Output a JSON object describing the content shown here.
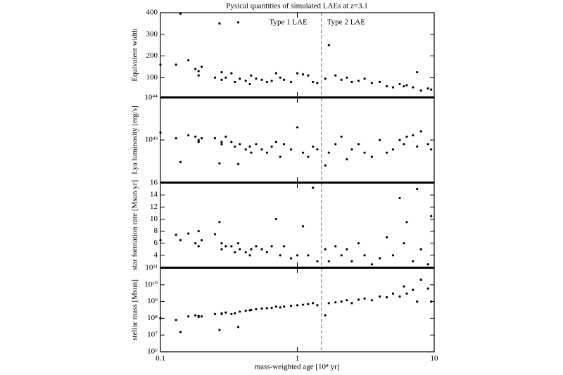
{
  "chart_data": [
    {
      "type": "scatter",
      "title": "Pysical quantities of simulated LAEs at z=3.1",
      "ylabel": "Equivalent width",
      "annotations": [
        "Type 1 LAE",
        "Type 2 LAE"
      ],
      "vline": 1.5,
      "xscale": "log",
      "yscale": "linear",
      "color": "#000000",
      "xlim": [
        0.1,
        10
      ],
      "xticks": [
        0.1,
        1,
        10
      ],
      "ylim": [
        10,
        400
      ],
      "yticks": [
        100,
        200,
        300,
        400
      ],
      "x": [
        0.1,
        0.13,
        0.14,
        0.16,
        0.18,
        0.19,
        0.19,
        0.2,
        0.25,
        0.27,
        0.28,
        0.28,
        0.3,
        0.33,
        0.35,
        0.37,
        0.38,
        0.42,
        0.45,
        0.46,
        0.5,
        0.55,
        0.6,
        0.65,
        0.7,
        0.75,
        0.8,
        0.9,
        1.0,
        1.1,
        1.2,
        1.3,
        1.4,
        1.6,
        1.7,
        1.9,
        2.1,
        2.3,
        2.5,
        2.8,
        3.1,
        3.5,
        4.0,
        4.5,
        5.0,
        5.6,
        6.0,
        6.3,
        7.0,
        7.5,
        8.0,
        9.0,
        9.5
      ],
      "values": [
        160,
        160,
        395,
        180,
        140,
        130,
        110,
        150,
        100,
        350,
        125,
        90,
        100,
        120,
        80,
        355,
        95,
        85,
        70,
        110,
        95,
        90,
        80,
        85,
        120,
        100,
        90,
        80,
        120,
        115,
        110,
        80,
        75,
        95,
        250,
        110,
        90,
        100,
        80,
        85,
        95,
        75,
        80,
        60,
        55,
        70,
        60,
        65,
        55,
        125,
        40,
        50,
        45
      ]
    },
    {
      "type": "scatter",
      "ylabel": "Lya luminosity [erg/s]",
      "vline": 1.5,
      "xscale": "log",
      "yscale": "log",
      "color": "#000000",
      "xlim": [
        0.1,
        10
      ],
      "xticks": [
        0.1,
        1,
        10
      ],
      "ylim": [
        1e+42,
        1e+44
      ],
      "yticks": [
        {
          "value": 1e+43,
          "label": "10⁴³"
        },
        {
          "value": 1e+44,
          "label": "10⁴⁴"
        }
      ],
      "x": [
        0.1,
        0.13,
        0.14,
        0.16,
        0.18,
        0.19,
        0.19,
        0.2,
        0.25,
        0.27,
        0.28,
        0.28,
        0.3,
        0.33,
        0.35,
        0.37,
        0.38,
        0.42,
        0.45,
        0.46,
        0.5,
        0.55,
        0.6,
        0.65,
        0.7,
        0.75,
        0.8,
        0.9,
        1.0,
        1.1,
        1.2,
        1.3,
        1.4,
        1.6,
        1.7,
        1.9,
        2.1,
        2.3,
        2.5,
        2.8,
        3.1,
        3.5,
        4.0,
        4.5,
        5.0,
        5.6,
        6.0,
        6.3,
        7.0,
        7.5,
        8.0,
        9.0,
        9.5
      ],
      "values": [
        1.5e+43,
        1.1e+43,
        3e+42,
        1.3e+43,
        1.2e+43,
        1e+43,
        9e+42,
        1.1e+43,
        1.1e+43,
        2.8e+42,
        9e+42,
        8e+42,
        1.2e+43,
        9e+42,
        7e+42,
        2.7e+42,
        8e+42,
        6e+42,
        7e+42,
        5e+42,
        8e+42,
        6e+42,
        5e+42,
        7e+42,
        9e+42,
        4e+42,
        8e+42,
        6e+42,
        2e+43,
        5e+42,
        4e+42,
        7e+42,
        6e+42,
        2.5e+42,
        5e+42,
        8e+42,
        1.2e+43,
        3.5e+42,
        6e+42,
        8e+42,
        5e+42,
        4e+42,
        1e+43,
        5e+42,
        6e+42,
        1e+43,
        8e+42,
        1.2e+43,
        1.3e+43,
        7e+42,
        1.6e+43,
        8e+42,
        6e+42
      ]
    },
    {
      "type": "scatter",
      "ylabel": "star formation rate [Msun yr]",
      "vline": 1.5,
      "xscale": "log",
      "yscale": "linear",
      "color": "#000000",
      "xlim": [
        0.1,
        10
      ],
      "xticks": [
        0.1,
        1,
        10
      ],
      "ylim": [
        2,
        16
      ],
      "yticks": [
        4,
        6,
        8,
        10,
        12,
        14,
        16
      ],
      "x": [
        0.1,
        0.13,
        0.14,
        0.16,
        0.18,
        0.19,
        0.19,
        0.2,
        0.25,
        0.27,
        0.28,
        0.28,
        0.3,
        0.33,
        0.35,
        0.37,
        0.38,
        0.42,
        0.45,
        0.46,
        0.5,
        0.55,
        0.6,
        0.65,
        0.7,
        0.75,
        0.8,
        0.9,
        1.0,
        1.1,
        1.2,
        1.3,
        1.4,
        1.6,
        1.7,
        1.9,
        2.1,
        2.3,
        2.5,
        2.8,
        3.1,
        3.5,
        4.0,
        4.5,
        5.0,
        5.6,
        6.0,
        6.3,
        7.0,
        7.5,
        8.0,
        9.0,
        9.5
      ],
      "values": [
        6.5,
        7.4,
        6.5,
        7.6,
        6,
        8,
        5.5,
        6.5,
        7.5,
        9.5,
        6,
        5,
        5.5,
        5.5,
        4.5,
        6,
        5,
        4.5,
        4,
        5,
        5.5,
        5,
        4.5,
        5.5,
        10,
        4,
        5.5,
        3.5,
        4,
        8.8,
        4,
        15.2,
        3,
        5,
        3,
        5.5,
        4,
        5,
        3,
        6,
        4,
        2.5,
        3.5,
        7,
        4,
        13.5,
        6,
        9.5,
        3,
        15,
        5,
        2.5,
        10.5
      ]
    },
    {
      "type": "scatter",
      "ylabel": "stellar mass [Msun]",
      "xlabel": "mass-weighted age [10⁸ yr]",
      "vline": 1.5,
      "xscale": "log",
      "yscale": "log",
      "color": "#000000",
      "xlim": [
        0.1,
        10
      ],
      "xticks": [
        0.1,
        1,
        10
      ],
      "ylim": [
        1000000.0,
        100000000000.0
      ],
      "yticks": [
        {
          "value": 1000000.0,
          "label": "10⁶"
        },
        {
          "value": 10000000.0,
          "label": "10⁷"
        },
        {
          "value": 100000000.0,
          "label": "10⁸"
        },
        {
          "value": 1000000000.0,
          "label": "10⁹"
        },
        {
          "value": 10000000000.0,
          "label": "10¹⁰"
        },
        {
          "value": 100000000000.0,
          "label": "10¹¹"
        }
      ],
      "x": [
        0.1,
        0.13,
        0.14,
        0.16,
        0.18,
        0.19,
        0.19,
        0.2,
        0.25,
        0.27,
        0.28,
        0.28,
        0.3,
        0.33,
        0.35,
        0.37,
        0.38,
        0.42,
        0.45,
        0.46,
        0.5,
        0.55,
        0.6,
        0.65,
        0.7,
        0.75,
        0.8,
        0.9,
        1.0,
        1.1,
        1.2,
        1.3,
        1.4,
        1.6,
        1.7,
        1.9,
        2.1,
        2.3,
        2.5,
        2.8,
        3.1,
        3.5,
        4.0,
        4.5,
        5.0,
        5.6,
        6.0,
        6.3,
        7.0,
        7.5,
        8.0,
        9.0,
        9.5
      ],
      "values": [
        100000000.0,
        80000000.0,
        15000000.0,
        130000000.0,
        150000000.0,
        140000000.0,
        120000000.0,
        130000000.0,
        180000000.0,
        20000000.0,
        180000000.0,
        200000000.0,
        220000000.0,
        180000000.0,
        200000000.0,
        30000000.0,
        250000000.0,
        280000000.0,
        300000000.0,
        320000000.0,
        350000000.0,
        380000000.0,
        400000000.0,
        420000000.0,
        500000000.0,
        450000000.0,
        500000000.0,
        550000000.0,
        600000000.0,
        650000000.0,
        700000000.0,
        800000000.0,
        600000000.0,
        150000000.0,
        800000000.0,
        900000000.0,
        1000000000.0,
        1200000000.0,
        800000000.0,
        1300000000.0,
        1500000000.0,
        1200000000.0,
        2000000000.0,
        1800000000.0,
        3000000000.0,
        2000000000.0,
        8000000000.0,
        3000000000.0,
        5000000000.0,
        1000000000.0,
        20000000000.0,
        6000000000.0,
        1000000000.0
      ]
    }
  ]
}
